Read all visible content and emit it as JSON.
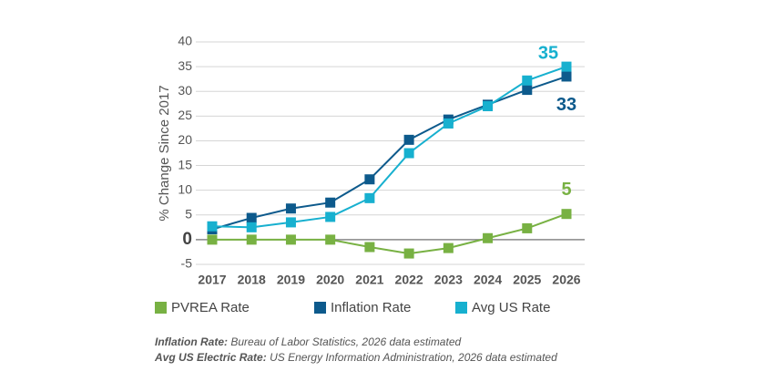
{
  "chart_data": {
    "type": "line",
    "y_label": "% Change Since 2017",
    "categories": [
      "2017",
      "2018",
      "2019",
      "2020",
      "2021",
      "2022",
      "2023",
      "2024",
      "2025",
      "2026"
    ],
    "series": [
      {
        "name": "PVREA Rate",
        "color": "#78b143",
        "values": [
          0,
          0,
          0,
          0,
          -1.5,
          -2.8,
          -1.7,
          0.3,
          2.3,
          5.2
        ],
        "value_labels": [
          null,
          null,
          null,
          null,
          null,
          null,
          null,
          null,
          null,
          "5"
        ]
      },
      {
        "name": "Inflation Rate",
        "color": "#0d5a8c",
        "values": [
          2.1,
          4.4,
          6.3,
          7.5,
          12.2,
          20.2,
          24.3,
          27.3,
          30.3,
          33
        ],
        "value_labels": [
          null,
          null,
          null,
          null,
          null,
          null,
          null,
          null,
          null,
          "33"
        ]
      },
      {
        "name": "Avg US Rate",
        "color": "#17b0cf",
        "values": [
          2.7,
          2.5,
          3.5,
          4.6,
          8.4,
          17.5,
          23.5,
          27,
          32.2,
          35
        ],
        "value_labels": [
          null,
          null,
          null,
          null,
          null,
          null,
          null,
          null,
          null,
          "35"
        ]
      }
    ],
    "ylim": [
      -5,
      40
    ],
    "yticks": [
      -5,
      0,
      5,
      10,
      15,
      20,
      25,
      30,
      35,
      40
    ],
    "grid": true
  },
  "notes": [
    {
      "label": "Inflation Rate:",
      "text": "Bureau of Labor Statistics, 2026 data estimated"
    },
    {
      "label": "Avg US Electric Rate:",
      "text": "US Energy Information Administration, 2026 data estimated"
    }
  ]
}
